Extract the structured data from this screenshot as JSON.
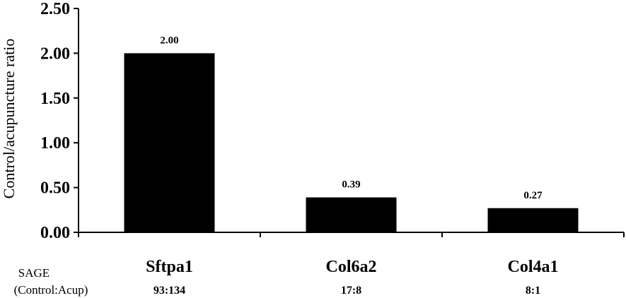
{
  "chart_data": {
    "type": "bar",
    "title": "",
    "xlabel": "",
    "ylabel": "Control/acupuncture ratio",
    "ylim": [
      0,
      2.5
    ],
    "y_ticks": [
      "0.00",
      "0.50",
      "1.00",
      "1.50",
      "2.00",
      "2.50"
    ],
    "categories": [
      "Sftpa1",
      "Col6a2",
      "Col4a1"
    ],
    "values": [
      2.0,
      0.39,
      0.27
    ],
    "data_labels": [
      "2.00",
      "0.39",
      "0.27"
    ],
    "bar_color": "#000000",
    "grid": false,
    "legend": "none"
  },
  "sage": {
    "title_line1": "SAGE",
    "title_line2": "(Control:Acup)",
    "values": [
      "93:134",
      "17:8",
      "8:1"
    ]
  }
}
